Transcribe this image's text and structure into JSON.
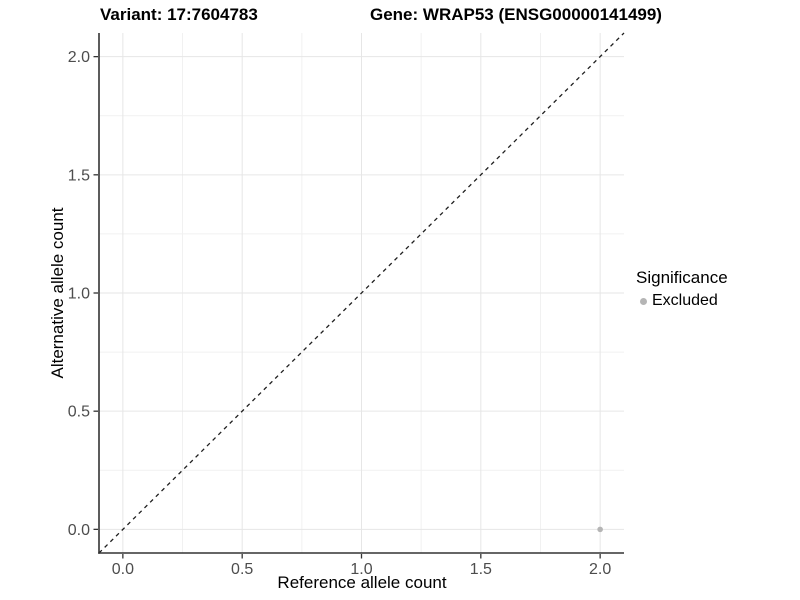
{
  "chart_data": {
    "type": "scatter",
    "titles": [
      "Variant: 17:7604783",
      "Gene: WRAP53 (ENSG00000141499)"
    ],
    "xlabel": "Reference allele count",
    "ylabel": "Alternative allele count",
    "xlim": [
      -0.1,
      2.1
    ],
    "ylim": [
      -0.1,
      2.1
    ],
    "x_ticks": {
      "values": [
        0,
        0.5,
        1,
        1.5,
        2
      ],
      "labels": [
        "0.0",
        "0.5",
        "1.0",
        "1.5",
        "2.0"
      ]
    },
    "y_ticks": {
      "values": [
        0,
        0.5,
        1,
        1.5,
        2
      ],
      "labels": [
        "0.0",
        "0.5",
        "1.0",
        "1.5",
        "2.0"
      ]
    },
    "minor_ticks": [
      0.25,
      0.75,
      1.25,
      1.75
    ],
    "grid": "on",
    "reference_line": {
      "slope": 1,
      "intercept": 0,
      "style": "dashed",
      "color": "#1f1f1f"
    },
    "series": [
      {
        "name": "Excluded",
        "color": "#b5b5b5",
        "points": [
          {
            "x": 2.0,
            "y": 0.0
          }
        ]
      }
    ],
    "legend": {
      "title": "Significance",
      "position": "right",
      "items": [
        {
          "label": "Excluded",
          "color": "#b5b5b5",
          "marker": "circle"
        }
      ]
    }
  },
  "colors": {
    "background": "#ffffff",
    "axis_line": "#333333",
    "tick_label": "#4d4d4d",
    "grid_major": "#e6e6e6",
    "grid_minor": "#f1f1f1",
    "point": "#b5b5b5"
  }
}
